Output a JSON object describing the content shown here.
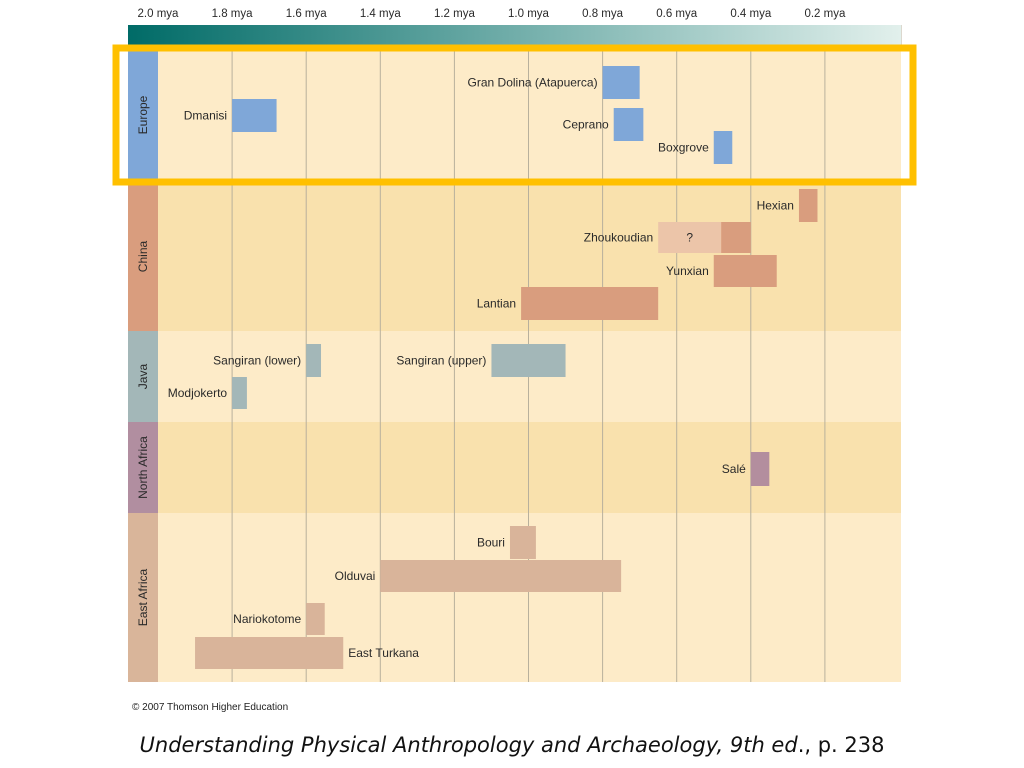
{
  "chart_data": {
    "type": "timeline",
    "x_unit": "mya",
    "xlim": [
      2.0,
      0.0
    ],
    "x_ticks": [
      "2.0 mya",
      "1.8 mya",
      "1.6 mya",
      "1.4 mya",
      "1.2 mya",
      "1.0 mya",
      "0.8 mya",
      "0.6 mya",
      "0.4 mya",
      "0.2 mya"
    ],
    "x_tick_values": [
      2.0,
      1.8,
      1.6,
      1.4,
      1.2,
      1.0,
      0.8,
      0.6,
      0.4,
      0.2
    ],
    "grid": true,
    "highlight_region": "Europe",
    "colors": {
      "axis_bar_dark": "#006b67",
      "axis_bar_light": "#e2f0ec",
      "panel_light": "#fdebc8",
      "panel_dark": "#f9e1ad",
      "highlight": "#ffc000",
      "gridline": "#b8b09c"
    },
    "regions": [
      {
        "name": "Europe",
        "color": "#7fa7d8",
        "bar_color": "#7fa7d8",
        "sites": [
          {
            "label": "Dmanisi",
            "start": 1.8,
            "end": 1.68,
            "label_side": "left"
          },
          {
            "label": "Gran Dolina (Atapuerca)",
            "start": 0.8,
            "end": 0.7,
            "label_side": "left"
          },
          {
            "label": "Ceprano",
            "start": 0.77,
            "end": 0.69,
            "label_side": "left"
          },
          {
            "label": "Boxgrove",
            "start": 0.5,
            "end": 0.45,
            "label_side": "left"
          }
        ]
      },
      {
        "name": "China",
        "color": "#d99d7e",
        "bar_color": "#d99d7e",
        "sites": [
          {
            "label": "Hexian",
            "start": 0.27,
            "end": 0.22,
            "label_side": "left"
          },
          {
            "label": "Zhoukoudian",
            "start": 0.48,
            "end": 0.4,
            "label_side": "left",
            "uncertain": {
              "start": 0.65,
              "end": 0.48,
              "label": "?"
            }
          },
          {
            "label": "Yunxian",
            "start": 0.5,
            "end": 0.33,
            "label_side": "left"
          },
          {
            "label": "Lantian",
            "start": 1.02,
            "end": 0.65,
            "label_side": "left"
          }
        ]
      },
      {
        "name": "Java",
        "color": "#a3b7b8",
        "bar_color": "#a3b7b8",
        "sites": [
          {
            "label": "Sangiran (lower)",
            "start": 1.6,
            "end": 1.56,
            "label_side": "left"
          },
          {
            "label": "Sangiran (upper)",
            "start": 1.1,
            "end": 0.9,
            "label_side": "left"
          },
          {
            "label": "Modjokerto",
            "start": 1.8,
            "end": 1.76,
            "label_side": "left"
          }
        ]
      },
      {
        "name": "North Africa",
        "color": "#b18ea0",
        "bar_color": "#b38e9e",
        "sites": [
          {
            "label": "Salé",
            "start": 0.4,
            "end": 0.35,
            "label_side": "left"
          }
        ]
      },
      {
        "name": "East Africa",
        "color": "#d9b59a",
        "bar_color": "#d9b49a",
        "sites": [
          {
            "label": "Bouri",
            "start": 1.05,
            "end": 0.98,
            "label_side": "left"
          },
          {
            "label": "Olduvai",
            "start": 1.4,
            "end": 0.75,
            "label_side": "left"
          },
          {
            "label": "Nariokotome",
            "start": 1.6,
            "end": 1.55,
            "label_side": "left"
          },
          {
            "label": "East Turkana",
            "start": 1.9,
            "end": 1.5,
            "label_side": "right"
          }
        ]
      }
    ]
  },
  "footer": {
    "copyright": "© 2007 Thomson Higher Education",
    "citation_title": "Understanding Physical Anthropology and Archaeology, 9th ed",
    "citation_page": "., p. 238"
  }
}
